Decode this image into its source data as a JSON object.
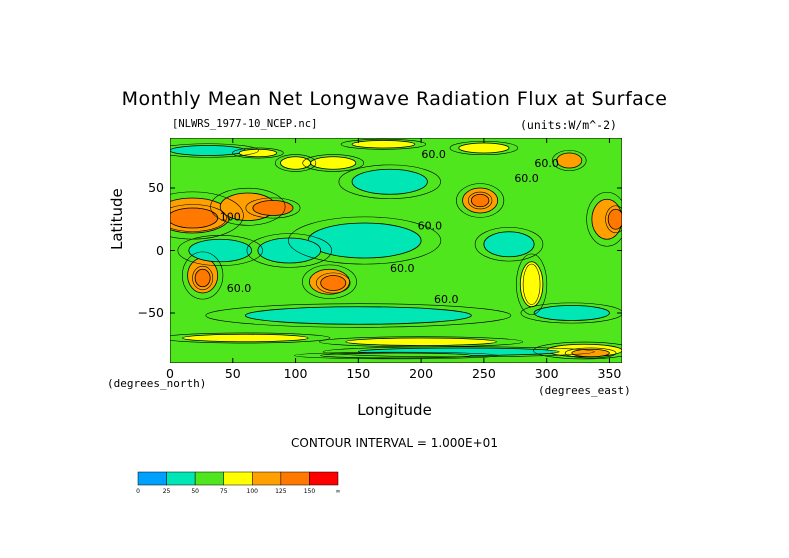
{
  "title": "Monthly Mean Net Longwave Radiation Flux at Surface",
  "file_label": "[NLWRS_1977-10_NCEP.nc]",
  "units_label": "(units:W/m^-2)",
  "contour_interval": "CONTOUR INTERVAL = 1.000E+01",
  "chart_data": {
    "type": "heatmap",
    "title": "Monthly Mean Net Longwave Radiation Flux at Surface",
    "xlabel": "Longitude",
    "ylabel": "Latitude",
    "x_unit": "(degrees_east)",
    "y_unit": "(degrees_north)",
    "xlim": [
      0,
      360
    ],
    "ylim": [
      -90,
      90
    ],
    "x_ticks": [
      0,
      50,
      100,
      150,
      200,
      250,
      300,
      350
    ],
    "y_ticks": [
      50,
      0,
      -50
    ],
    "x_tick_labels": [
      "0",
      "50",
      "100",
      "150",
      "200",
      "250",
      "300",
      "350"
    ],
    "y_tick_labels": [
      "50",
      "0",
      "−50"
    ],
    "contour_labels": [
      {
        "text": "60.0",
        "lon": 210,
        "lat": 74
      },
      {
        "text": "60.0",
        "lon": 284,
        "lat": 55
      },
      {
        "text": "60.0",
        "lon": 300,
        "lat": 67
      },
      {
        "text": "60.0",
        "lon": 207,
        "lat": 17
      },
      {
        "text": "60.0",
        "lon": 185,
        "lat": -17
      },
      {
        "text": "60.0",
        "lon": 55,
        "lat": -33
      },
      {
        "text": "60.0",
        "lon": 220,
        "lat": -42
      },
      {
        "text": "100",
        "lon": 48,
        "lat": 24
      }
    ],
    "colorbar": {
      "colors": [
        "#00a0ff",
        "#00e6b4",
        "#50e61e",
        "#ffff00",
        "#ffa000",
        "#ff7800",
        "#ff0000"
      ],
      "labels": [
        "0",
        "25",
        "50",
        "75",
        "100",
        "125",
        "150",
        "∞"
      ]
    },
    "features": [
      {
        "level": 4,
        "lon": 18,
        "lat": 28,
        "rlon": 30,
        "rlat": 14
      },
      {
        "level": 5,
        "lon": 18,
        "lat": 26,
        "rlon": 20,
        "rlat": 8
      },
      {
        "level": 4,
        "lon": 62,
        "lat": 35,
        "rlon": 22,
        "rlat": 11
      },
      {
        "level": 5,
        "lon": 82,
        "lat": 34,
        "rlon": 16,
        "rlat": 6
      },
      {
        "level": 4,
        "lon": 26,
        "lat": -20,
        "rlon": 12,
        "rlat": 14
      },
      {
        "level": 5,
        "lon": 26,
        "lat": -22,
        "rlon": 6,
        "rlat": 7
      },
      {
        "level": 4,
        "lon": 127,
        "lat": -25,
        "rlon": 16,
        "rlat": 10
      },
      {
        "level": 5,
        "lon": 130,
        "lat": -26,
        "rlon": 10,
        "rlat": 6
      },
      {
        "level": 4,
        "lon": 247,
        "lat": 40,
        "rlon": 14,
        "rlat": 10
      },
      {
        "level": 5,
        "lon": 247,
        "lat": 40,
        "rlon": 7,
        "rlat": 5
      },
      {
        "level": 4,
        "lon": 348,
        "lat": 25,
        "rlon": 12,
        "rlat": 16
      },
      {
        "level": 5,
        "lon": 355,
        "lat": 25,
        "rlon": 6,
        "rlat": 8
      },
      {
        "level": 4,
        "lon": 288,
        "lat": -27,
        "rlon": 5,
        "rlat": 12
      },
      {
        "level": 3,
        "lon": 288,
        "lat": -27,
        "rlon": 9,
        "rlat": 18
      },
      {
        "level": 4,
        "lon": 318,
        "lat": 72,
        "rlon": 10,
        "rlat": 6
      },
      {
        "level": 3,
        "lon": 130,
        "lat": 70,
        "rlon": 18,
        "rlat": 5
      },
      {
        "level": 3,
        "lon": 100,
        "lat": 70,
        "rlon": 12,
        "rlat": 5
      },
      {
        "level": 3,
        "lon": 250,
        "lat": 82,
        "rlon": 20,
        "rlat": 4
      },
      {
        "level": 3,
        "lon": 170,
        "lat": 85,
        "rlon": 25,
        "rlat": 3
      },
      {
        "level": 1,
        "lon": 155,
        "lat": 8,
        "rlon": 45,
        "rlat": 14
      },
      {
        "level": 1,
        "lon": 95,
        "lat": 0,
        "rlon": 25,
        "rlat": 10
      },
      {
        "level": 1,
        "lon": 40,
        "lat": 0,
        "rlon": 25,
        "rlat": 9
      },
      {
        "level": 1,
        "lon": 150,
        "lat": -52,
        "rlon": 90,
        "rlat": 7
      },
      {
        "level": 1,
        "lon": 320,
        "lat": -50,
        "rlon": 30,
        "rlat": 6
      },
      {
        "level": 1,
        "lon": 175,
        "lat": 55,
        "rlon": 30,
        "rlat": 10
      },
      {
        "level": 1,
        "lon": 270,
        "lat": 5,
        "rlon": 20,
        "rlat": 10
      },
      {
        "level": 3,
        "lon": 60,
        "lat": -70,
        "rlon": 50,
        "rlat": 3
      },
      {
        "level": 3,
        "lon": 200,
        "lat": -73,
        "rlon": 60,
        "rlat": 3
      },
      {
        "level": 3,
        "lon": 330,
        "lat": -80,
        "rlon": 30,
        "rlat": 5
      },
      {
        "level": 4,
        "lon": 335,
        "lat": -82,
        "rlon": 15,
        "rlat": 3
      },
      {
        "level": 1,
        "lon": 230,
        "lat": -81,
        "rlon": 80,
        "rlat": 3
      },
      {
        "level": 2,
        "lon": 180,
        "lat": -84,
        "rlon": 60,
        "rlat": 2
      },
      {
        "level": 1,
        "lon": 30,
        "lat": 80,
        "rlon": 30,
        "rlat": 4
      },
      {
        "level": 3,
        "lon": 70,
        "lat": 78,
        "rlon": 15,
        "rlat": 3
      }
    ]
  }
}
